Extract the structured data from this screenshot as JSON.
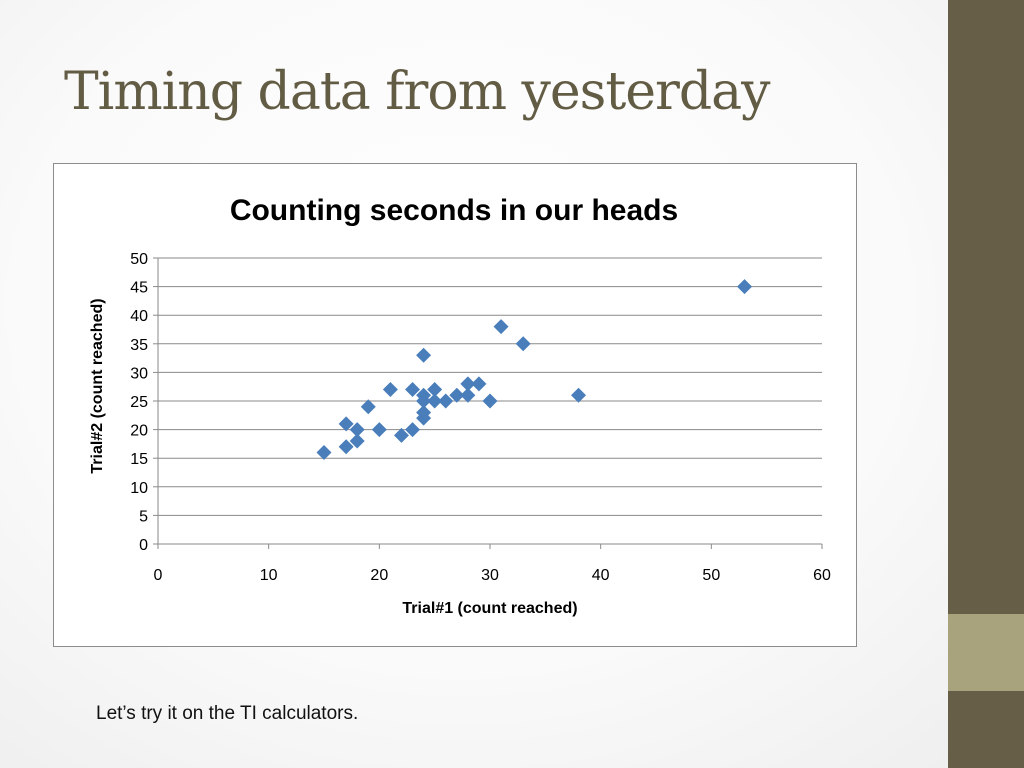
{
  "slide": {
    "title": "Timing data from yesterday",
    "caption": "Let’s try it on the TI calculators.",
    "title_color": "#635c45",
    "band_color": "#675e48",
    "accent_color": "#a9a37d"
  },
  "chart_data": {
    "type": "scatter",
    "title": "Counting seconds in our heads",
    "xlabel": "Trial#1 (count reached)",
    "ylabel": "Trial#2 (count reached)",
    "xlim": [
      0,
      60
    ],
    "ylim": [
      0,
      50
    ],
    "xticks": [
      0,
      10,
      20,
      30,
      40,
      50,
      60
    ],
    "yticks": [
      0,
      5,
      10,
      15,
      20,
      25,
      30,
      35,
      40,
      45,
      50
    ],
    "grid": "horizontal",
    "legend": "none",
    "marker": "diamond",
    "marker_color": "#4a7ebb",
    "series": [
      {
        "points": [
          [
            15,
            16
          ],
          [
            17,
            17
          ],
          [
            17,
            21
          ],
          [
            18,
            18
          ],
          [
            18,
            20
          ],
          [
            19,
            24
          ],
          [
            20,
            20
          ],
          [
            21,
            27
          ],
          [
            22,
            19
          ],
          [
            23,
            20
          ],
          [
            23,
            27
          ],
          [
            24,
            22
          ],
          [
            24,
            23
          ],
          [
            24,
            25
          ],
          [
            24,
            26
          ],
          [
            24,
            33
          ],
          [
            25,
            25
          ],
          [
            25,
            27
          ],
          [
            26,
            25
          ],
          [
            27,
            26
          ],
          [
            28,
            26
          ],
          [
            28,
            28
          ],
          [
            29,
            28
          ],
          [
            30,
            25
          ],
          [
            31,
            38
          ],
          [
            33,
            35
          ],
          [
            38,
            26
          ],
          [
            53,
            45
          ]
        ]
      }
    ]
  }
}
